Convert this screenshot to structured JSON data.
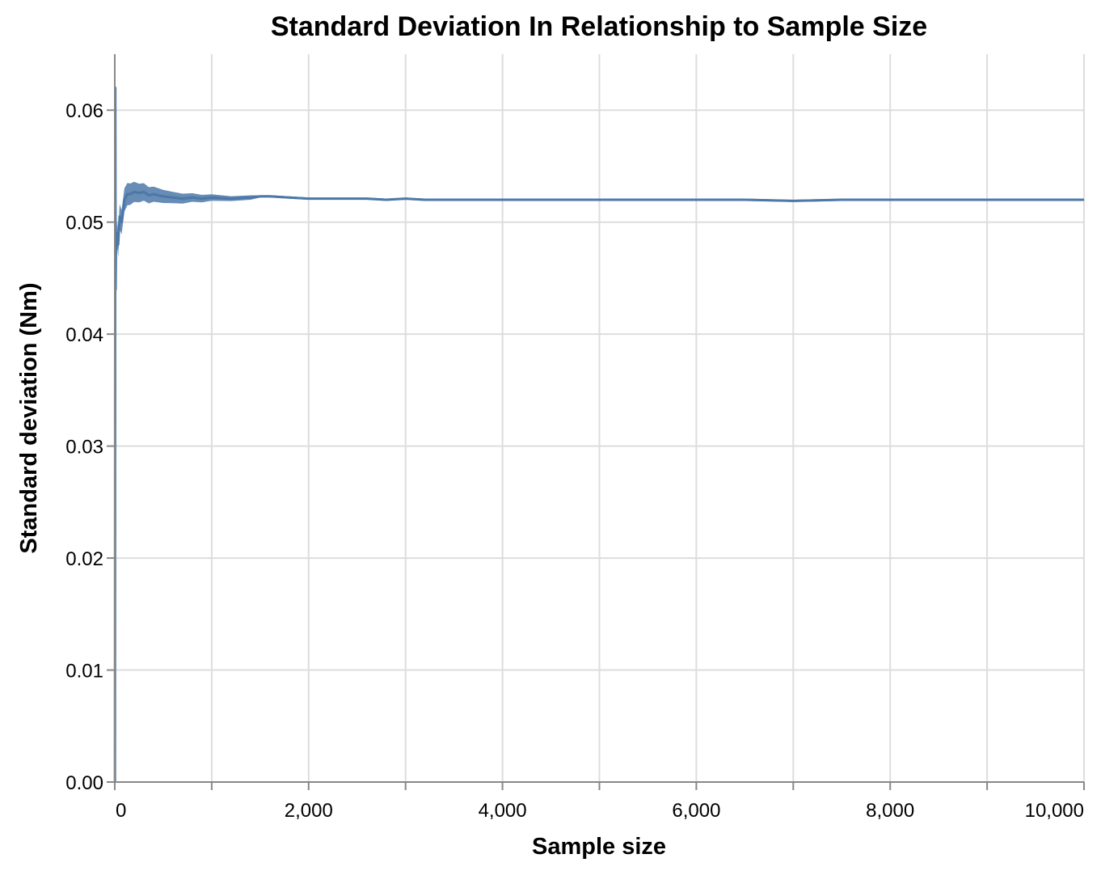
{
  "chart_data": {
    "type": "line",
    "title": "Standard Deviation In Relationship to Sample Size",
    "xlabel": "Sample size",
    "ylabel": "Standard deviation (Nm)",
    "xlim": [
      0,
      10000
    ],
    "ylim": [
      0,
      0.065
    ],
    "x_ticks": [
      {
        "value": 0,
        "label": "0"
      },
      {
        "value": 2000,
        "label": "2,000"
      },
      {
        "value": 4000,
        "label": "4,000"
      },
      {
        "value": 6000,
        "label": "6,000"
      },
      {
        "value": 8000,
        "label": "8,000"
      },
      {
        "value": 10000,
        "label": "10,000"
      }
    ],
    "x_minor_ticks": [
      1000,
      3000,
      5000,
      7000,
      9000
    ],
    "y_ticks": [
      {
        "value": 0.0,
        "label": "0.00"
      },
      {
        "value": 0.01,
        "label": "0.01"
      },
      {
        "value": 0.02,
        "label": "0.02"
      },
      {
        "value": 0.03,
        "label": "0.03"
      },
      {
        "value": 0.04,
        "label": "0.04"
      },
      {
        "value": 0.05,
        "label": "0.05"
      },
      {
        "value": 0.06,
        "label": "0.06"
      }
    ],
    "grid": true,
    "color": "#4c78a8",
    "series": [
      {
        "x": [
          2,
          5,
          8,
          12,
          18,
          25,
          35,
          50,
          70,
          100,
          130,
          160,
          200,
          250,
          300,
          350,
          400,
          450,
          500,
          600,
          700,
          800,
          900,
          1000,
          1200,
          1400,
          1500,
          1600,
          1800,
          2000,
          2200,
          2400,
          2600,
          2800,
          3000,
          3200,
          3500,
          4000,
          4500,
          5000,
          5500,
          6000,
          6500,
          7000,
          7500,
          8000,
          8500,
          9000,
          9500,
          10000
        ],
        "values": [
          0.0,
          0.062,
          0.044,
          0.0475,
          0.0478,
          0.049,
          0.048,
          0.0505,
          0.05,
          0.052,
          0.0525,
          0.0525,
          0.0527,
          0.0526,
          0.0527,
          0.0524,
          0.0525,
          0.0524,
          0.0523,
          0.0522,
          0.0521,
          0.0522,
          0.0521,
          0.0522,
          0.0521,
          0.0522,
          0.0523,
          0.0523,
          0.0522,
          0.0521,
          0.0521,
          0.0521,
          0.0521,
          0.052,
          0.0521,
          0.052,
          0.052,
          0.052,
          0.052,
          0.052,
          0.052,
          0.052,
          0.052,
          0.0519,
          0.052,
          0.052,
          0.052,
          0.052,
          0.052,
          0.052
        ]
      }
    ]
  }
}
